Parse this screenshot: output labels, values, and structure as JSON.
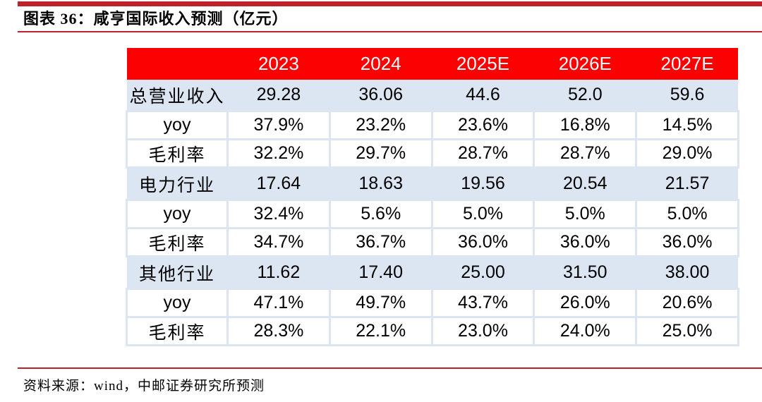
{
  "header": {
    "figure_title": "图表 36：咸亨国际收入预测（亿元）"
  },
  "table": {
    "columns": [
      "",
      "2023",
      "2024",
      "2025E",
      "2026E",
      "2027E"
    ],
    "rows": [
      {
        "label": "总营业收入",
        "values": [
          "29.28",
          "36.06",
          "44.6",
          "52.0",
          "59.6"
        ]
      },
      {
        "label": "yoy",
        "values": [
          "37.9%",
          "23.2%",
          "23.6%",
          "16.8%",
          "14.5%"
        ]
      },
      {
        "label": "毛利率",
        "values": [
          "32.2%",
          "29.7%",
          "28.7%",
          "28.7%",
          "29.0%"
        ]
      },
      {
        "label": "电力行业",
        "values": [
          "17.64",
          "18.63",
          "19.56",
          "20.54",
          "21.57"
        ]
      },
      {
        "label": "yoy",
        "values": [
          "32.4%",
          "5.6%",
          "5.0%",
          "5.0%",
          "5.0%"
        ]
      },
      {
        "label": "毛利率",
        "values": [
          "34.7%",
          "36.7%",
          "36.0%",
          "36.0%",
          "36.0%"
        ]
      },
      {
        "label": "其他行业",
        "values": [
          "11.62",
          "17.40",
          "25.00",
          "31.50",
          "38.00"
        ]
      },
      {
        "label": "yoy",
        "values": [
          "47.1%",
          "49.7%",
          "43.7%",
          "26.0%",
          "20.6%"
        ]
      },
      {
        "label": "毛利率",
        "values": [
          "28.3%",
          "22.1%",
          "23.0%",
          "24.0%",
          "25.0%"
        ]
      }
    ]
  },
  "footer": {
    "source": "资料来源：wind，中邮证券研究所预测"
  },
  "colors": {
    "header_red": "#fb0101",
    "rule_red": "#c32129",
    "band_blue": "#dce6f2"
  }
}
